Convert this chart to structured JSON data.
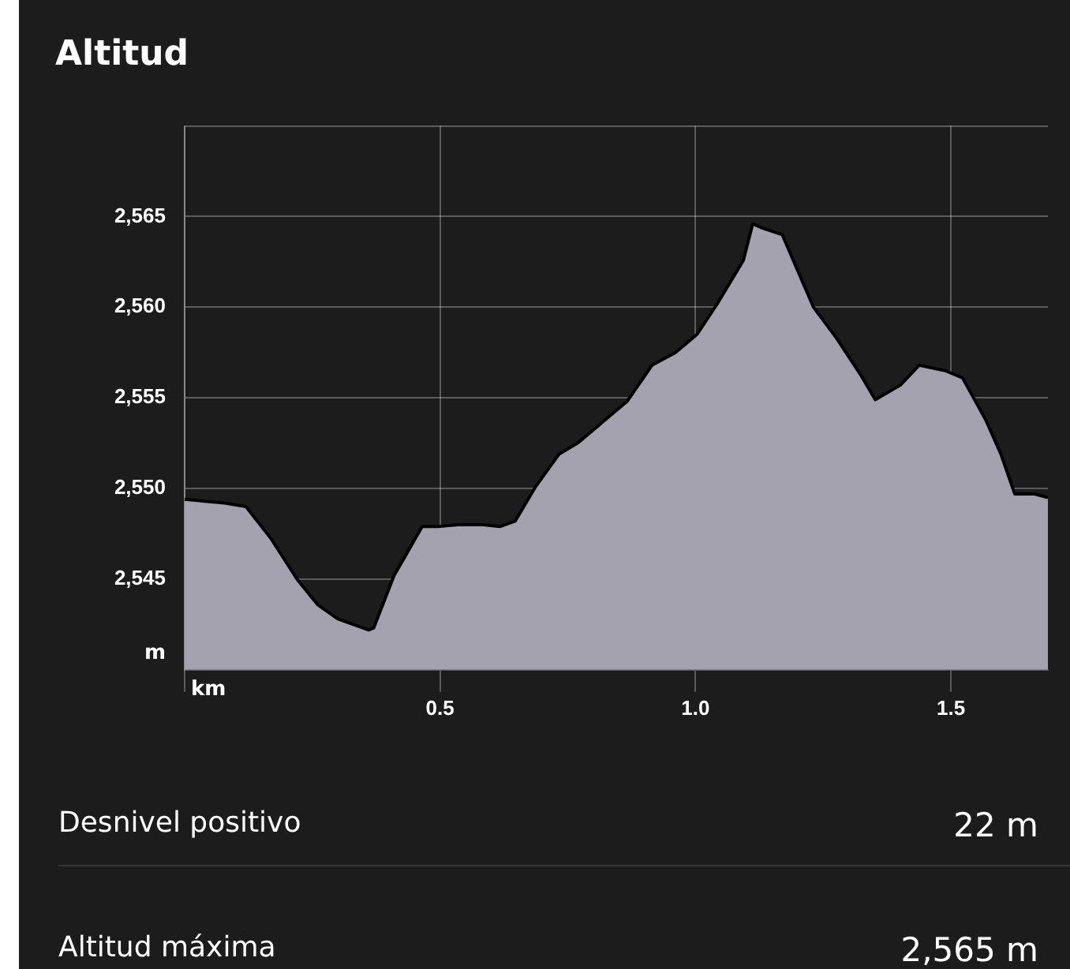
{
  "chart_data": {
    "type": "area",
    "title": "Altitud",
    "xlabel": "km",
    "ylabel": "m",
    "x": [
      0,
      0.079,
      0.12,
      0.17,
      0.22,
      0.26,
      0.3,
      0.34,
      0.36,
      0.37,
      0.41,
      0.465,
      0.495,
      0.535,
      0.585,
      0.617,
      0.647,
      0.687,
      0.733,
      0.769,
      0.866,
      0.915,
      0.961,
      1.003,
      1.043,
      1.094,
      1.112,
      1.128,
      1.17,
      1.231,
      1.276,
      1.325,
      1.352,
      1.401,
      1.438,
      1.489,
      1.523,
      1.568,
      1.598,
      1.625,
      1.664,
      1.69
    ],
    "series": [
      {
        "color": "#a3a2ae",
        "values": [
          2549.4,
          2549.2,
          2549.0,
          2547.2,
          2545.0,
          2543.6,
          2542.8,
          2542.4,
          2542.2,
          2542.3,
          2545.2,
          2547.9,
          2547.9,
          2548.0,
          2548.0,
          2547.9,
          2548.2,
          2550.1,
          2551.9,
          2552.5,
          2554.8,
          2556.8,
          2557.5,
          2558.5,
          2560.2,
          2562.6,
          2564.6,
          2564.4,
          2564.0,
          2560.0,
          2558.3,
          2556.2,
          2554.9,
          2555.7,
          2556.8,
          2556.5,
          2556.1,
          2553.8,
          2551.9,
          2549.7,
          2549.7,
          2549.5
        ]
      }
    ],
    "xlim": [
      0,
      1.69
    ],
    "ylim": [
      2540,
      2570
    ],
    "xticks": [
      {
        "value": 0,
        "label": null
      },
      0.5,
      {
        "value": 1,
        "label": "1.0"
      },
      1.5
    ],
    "yticks": [
      {
        "value": 2545,
        "label": "2,545"
      },
      {
        "value": 2550,
        "label": "2,550"
      },
      {
        "value": 2555,
        "label": "2,555"
      },
      {
        "value": 2560,
        "label": "2,560"
      },
      {
        "value": 2565,
        "label": "2,565"
      },
      {
        "value": 2570,
        "label": null
      }
    ],
    "grid": true,
    "legend": false,
    "marker": "none",
    "line_style": "solid",
    "annotations": [
      "Desnivel positivo",
      "22 m",
      "Altitud máxima",
      "2,565 m"
    ]
  }
}
